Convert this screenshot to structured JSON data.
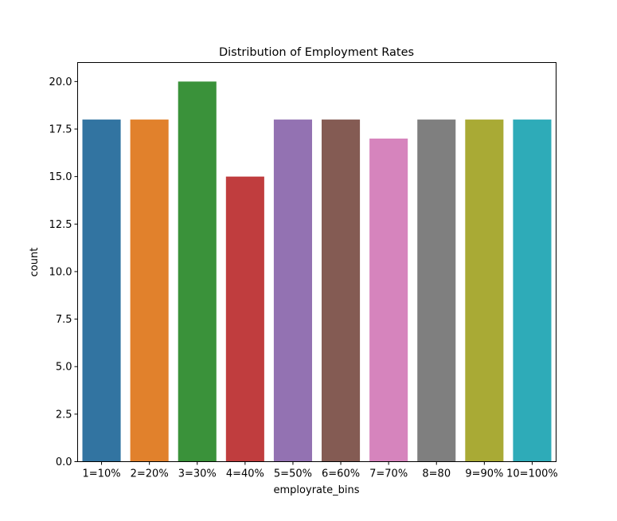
{
  "chart_data": {
    "type": "bar",
    "title": "Distribution of Employment Rates",
    "xlabel": "employrate_bins",
    "ylabel": "count",
    "categories": [
      "1=10%",
      "2=20%",
      "3=30%",
      "4=40%",
      "5=50%",
      "6=60%",
      "7=70%",
      "8=80",
      "9=90%",
      "10=100%"
    ],
    "values": [
      18,
      18,
      20,
      15,
      18,
      18,
      17,
      18,
      18,
      18
    ],
    "colors": [
      "#3274a1",
      "#e1812c",
      "#3a923a",
      "#c03d3e",
      "#9372b2",
      "#845b53",
      "#d684bd",
      "#7f7f7f",
      "#a9aa35",
      "#2eabb8"
    ],
    "ylim": [
      0,
      21
    ],
    "yticks": [
      0,
      2.5,
      5,
      7.5,
      10,
      12.5,
      15,
      17.5,
      20
    ],
    "ytick_labels": [
      "0.0",
      "2.5",
      "5.0",
      "7.5",
      "10.0",
      "12.5",
      "15.0",
      "17.5",
      "20.0"
    ],
    "grid": false,
    "legend": "none"
  }
}
